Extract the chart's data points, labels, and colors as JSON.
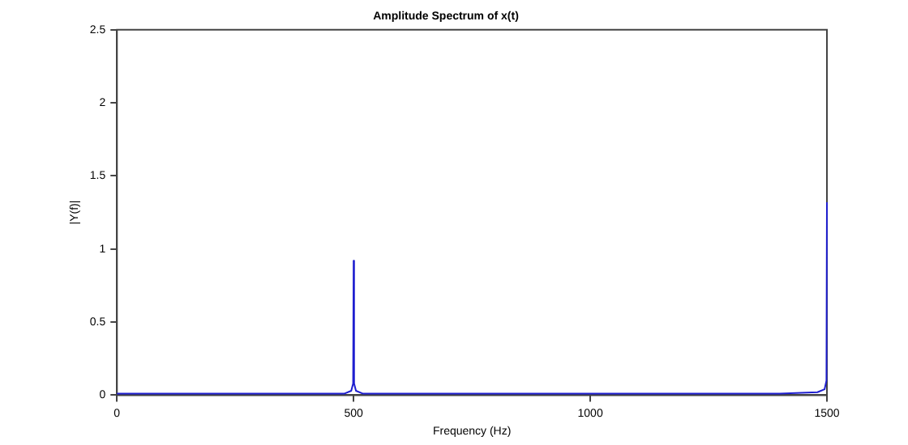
{
  "chart_data": {
    "type": "line",
    "title": "Amplitude Spectrum of x(t)",
    "xlabel": "Frequency (Hz)",
    "ylabel": "|Y(f)|",
    "x": [
      0,
      400,
      480,
      495,
      499,
      500,
      501,
      505,
      520,
      600,
      1000,
      1400,
      1480,
      1495,
      1499,
      1500
    ],
    "series": [
      {
        "color": "#1f1fd0",
        "values": [
          0.01,
          0.01,
          0.01,
          0.03,
          0.08,
          0.92,
          0.08,
          0.03,
          0.01,
          0.01,
          0.01,
          0.01,
          0.02,
          0.04,
          0.1,
          1.32
        ]
      }
    ],
    "xlim": [
      0,
      1500
    ],
    "ylim": [
      0,
      2.5
    ],
    "xticks": [
      0,
      500,
      1000,
      1500
    ],
    "yticks": [
      0,
      0.5,
      1,
      1.5,
      2,
      2.5
    ],
    "grid": false,
    "legend": false,
    "marker": "none",
    "line_style": "solid"
  }
}
